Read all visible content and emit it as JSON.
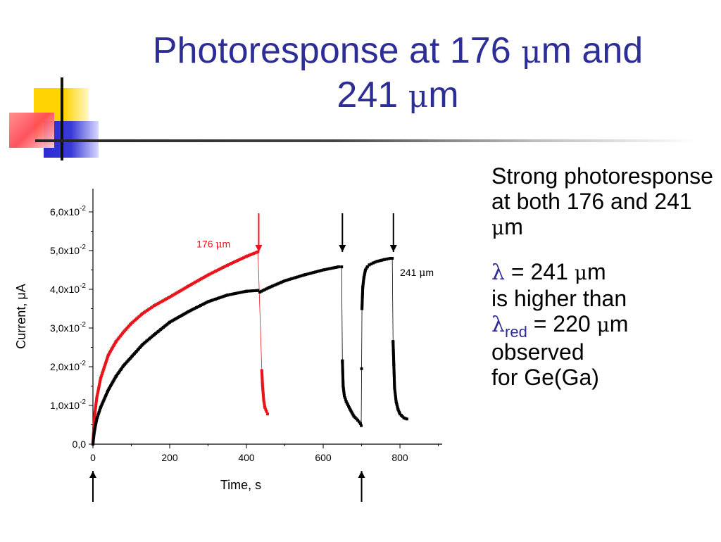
{
  "slide": {
    "title_line1_pre": "Photoresponse at 176 ",
    "title_mu": "μ",
    "title_line1_post": "m and",
    "title_line2_pre": "241 ",
    "title_line2_post": "m",
    "bullet1": {
      "text": "Strong photoresponse at both 176 and 241 ",
      "mu": "μ",
      "unit": "m"
    },
    "bullet2": {
      "lambda": "λ",
      "line1_pre": " = 241 ",
      "mu": "μ",
      "line1_post": "m",
      "line2": "is higher than",
      "red_sub": "red",
      "line3_pre": " = 220 ",
      "line3_post": "m",
      "line4": "observed",
      "line5": "for Ge(Ga)"
    }
  },
  "colors": {
    "title": "#2d2d96",
    "series_red": "#e8141b",
    "series_black": "#000000"
  },
  "chart_data": {
    "type": "scatter",
    "xlabel": "Time, s",
    "ylabel": "Current, μA",
    "xlim": [
      0,
      910
    ],
    "ylim": [
      0,
      0.066
    ],
    "xticks": [
      0,
      200,
      400,
      600,
      800
    ],
    "xtick_labels": [
      "0",
      "200",
      "400",
      "600",
      "800"
    ],
    "yticks": [
      0,
      0.01,
      0.02,
      0.03,
      0.04,
      0.05,
      0.06
    ],
    "ytick_labels": [
      {
        "mant": "0,0",
        "exp": ""
      },
      {
        "mant": "1,0x10",
        "exp": "-2"
      },
      {
        "mant": "2,0x10",
        "exp": "-2"
      },
      {
        "mant": "3,0x10",
        "exp": "-2"
      },
      {
        "mant": "4,0x10",
        "exp": "-2"
      },
      {
        "mant": "5,0x10",
        "exp": "-2"
      },
      {
        "mant": "6,0x10",
        "exp": "-2"
      }
    ],
    "series": [
      {
        "name": "176 μm",
        "color": "#e8141b",
        "x": [
          0,
          2,
          5,
          10,
          20,
          40,
          60,
          80,
          100,
          130,
          160,
          200,
          250,
          300,
          350,
          400,
          430,
          440,
          442,
          445,
          448,
          452,
          455
        ],
        "y": [
          0.0,
          0.004,
          0.008,
          0.012,
          0.017,
          0.023,
          0.0265,
          0.029,
          0.0312,
          0.0338,
          0.0358,
          0.038,
          0.0409,
          0.0437,
          0.0462,
          0.0485,
          0.0497,
          0.019,
          0.015,
          0.0113,
          0.0095,
          0.0085,
          0.0078
        ]
      },
      {
        "name": "241 μm",
        "color": "#000000",
        "x": [
          0,
          2,
          5,
          10,
          20,
          40,
          60,
          80,
          100,
          130,
          160,
          200,
          250,
          300,
          350,
          400,
          430,
          435,
          460,
          500,
          550,
          600,
          640,
          648,
          650,
          652,
          655,
          660,
          670,
          680,
          690,
          697,
          699,
          700,
          701,
          703,
          706,
          710,
          715,
          720,
          730,
          740,
          760,
          775,
          780,
          782,
          784,
          786,
          790,
          795,
          800,
          810,
          818
        ],
        "y": [
          0.0,
          0.002,
          0.004,
          0.0065,
          0.0095,
          0.014,
          0.0175,
          0.0203,
          0.0225,
          0.0258,
          0.0283,
          0.0315,
          0.0343,
          0.0368,
          0.0385,
          0.0395,
          0.0397,
          0.0393,
          0.0405,
          0.0422,
          0.0437,
          0.045,
          0.0458,
          0.0458,
          0.0215,
          0.015,
          0.0125,
          0.011,
          0.009,
          0.0072,
          0.0062,
          0.0053,
          0.0048,
          0.0195,
          0.035,
          0.0405,
          0.043,
          0.045,
          0.0458,
          0.0463,
          0.0468,
          0.0472,
          0.0477,
          0.048,
          0.048,
          0.0265,
          0.0205,
          0.0145,
          0.011,
          0.009,
          0.0078,
          0.0068,
          0.0065
        ]
      }
    ],
    "annotations": [
      {
        "text": "176 ",
        "mu": "μ",
        "unit": "m",
        "color": "#e8141b",
        "x": 270,
        "y": 0.0508
      },
      {
        "text": "241 ",
        "mu": "μ",
        "unit": "m",
        "color": "#000000",
        "x": 800,
        "y": 0.0435
      }
    ],
    "arrows_down": [
      {
        "x": 432,
        "color": "#e8141b"
      },
      {
        "x": 650,
        "color": "#000000"
      },
      {
        "x": 783,
        "color": "#000000"
      }
    ],
    "arrows_up": [
      {
        "x": 0,
        "color": "#000000"
      },
      {
        "x": 700,
        "color": "#000000"
      }
    ]
  }
}
